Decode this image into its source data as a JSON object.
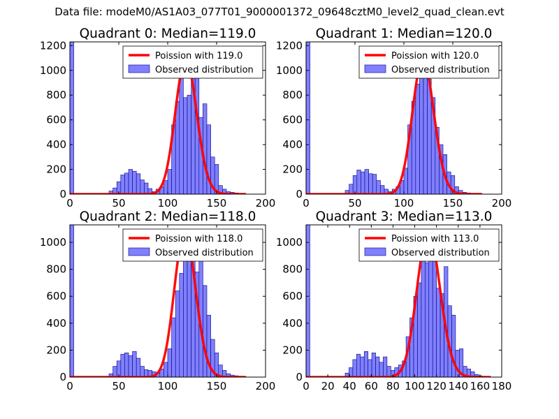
{
  "suptitle": "Data file: modeM0/AS1A03_077T01_9000001372_09648cztM0_level2_quad_clean.evt",
  "colors": {
    "fit_line": "#ff0000",
    "bar_fill": "#8080ff",
    "bar_edge": "#000080",
    "axes": "#000000",
    "legend_edge": "#000000"
  },
  "chart_data": [
    {
      "type": "bar",
      "title": "Quadrant 0: Median=119.0",
      "xlim": [
        0,
        200
      ],
      "ylim": [
        0,
        1230
      ],
      "xticks": [
        0,
        50,
        100,
        150,
        200
      ],
      "yticks": [
        0,
        200,
        400,
        600,
        800,
        1000,
        1200
      ],
      "legend_position": "top-right",
      "bin_width": 4,
      "bins": {
        "name": "Observed distribution",
        "x": [
          0,
          40,
          44,
          48,
          52,
          56,
          60,
          64,
          68,
          72,
          76,
          80,
          84,
          88,
          92,
          96,
          100,
          104,
          108,
          112,
          116,
          120,
          124,
          128,
          132,
          136,
          140,
          144,
          148,
          152,
          156,
          160,
          164,
          168,
          172,
          176
        ],
        "values": [
          1230,
          25,
          50,
          100,
          155,
          170,
          200,
          185,
          165,
          115,
          90,
          45,
          20,
          40,
          60,
          110,
          200,
          560,
          750,
          950,
          780,
          800,
          1020,
          980,
          620,
          730,
          560,
          300,
          240,
          70,
          40,
          20,
          15,
          10,
          5,
          2
        ]
      },
      "fit": {
        "name": "Poission with 119.0",
        "mean": 119.0,
        "peak": 1090,
        "x": [
          0,
          180
        ]
      }
    },
    {
      "type": "bar",
      "title": "Quadrant 1: Median=120.0",
      "xlim": [
        0,
        200
      ],
      "ylim": [
        0,
        1230
      ],
      "xticks": [
        0,
        50,
        100,
        150,
        200
      ],
      "yticks": [
        0,
        200,
        400,
        600,
        800,
        1000,
        1200
      ],
      "legend_position": "top-right",
      "bin_width": 4,
      "bins": {
        "name": "Observed distribution",
        "x": [
          0,
          40,
          44,
          48,
          52,
          56,
          60,
          64,
          68,
          72,
          76,
          80,
          84,
          88,
          92,
          96,
          100,
          104,
          108,
          112,
          116,
          120,
          124,
          128,
          132,
          136,
          140,
          144,
          148,
          152,
          156,
          160,
          164,
          168,
          172,
          176
        ],
        "values": [
          1230,
          30,
          80,
          150,
          195,
          180,
          200,
          165,
          160,
          110,
          70,
          40,
          20,
          40,
          60,
          110,
          210,
          560,
          750,
          890,
          990,
          1150,
          930,
          780,
          540,
          400,
          320,
          180,
          150,
          60,
          30,
          15,
          10,
          5,
          3,
          2
        ]
      },
      "fit": {
        "name": "Poission with 120.0",
        "mean": 120.0,
        "peak": 1090,
        "x": [
          0,
          180
        ]
      }
    },
    {
      "type": "bar",
      "title": "Quadrant 2: Median=118.0",
      "xlim": [
        0,
        200
      ],
      "ylim": [
        0,
        1130
      ],
      "xticks": [
        0,
        50,
        100,
        150,
        200
      ],
      "yticks": [
        0,
        200,
        400,
        600,
        800,
        1000
      ],
      "legend_position": "top-right",
      "bin_width": 4,
      "bins": {
        "name": "Observed distribution",
        "x": [
          0,
          40,
          44,
          48,
          52,
          56,
          60,
          64,
          68,
          72,
          76,
          80,
          84,
          88,
          92,
          96,
          100,
          104,
          108,
          112,
          116,
          120,
          124,
          128,
          132,
          136,
          140,
          144,
          148,
          152,
          156,
          160,
          164,
          168,
          172,
          176
        ],
        "values": [
          1130,
          25,
          80,
          120,
          170,
          180,
          160,
          190,
          140,
          80,
          55,
          50,
          40,
          30,
          60,
          110,
          210,
          440,
          640,
          770,
          940,
          1000,
          930,
          780,
          880,
          680,
          460,
          280,
          180,
          90,
          50,
          25,
          15,
          10,
          5,
          3
        ]
      },
      "fit": {
        "name": "Poission with 118.0",
        "mean": 118.0,
        "peak": 1080,
        "x": [
          0,
          180
        ]
      }
    },
    {
      "type": "bar",
      "title": "Quadrant 3: Median=113.0",
      "xlim": [
        0,
        180
      ],
      "ylim": [
        0,
        1130
      ],
      "xticks": [
        0,
        20,
        40,
        60,
        80,
        100,
        120,
        140,
        160,
        180
      ],
      "yticks": [
        0,
        200,
        400,
        600,
        800,
        1000
      ],
      "legend_position": "top-right",
      "bin_width": 3.5,
      "bins": {
        "name": "Observed distribution",
        "x": [
          0,
          36,
          39.5,
          43,
          46.5,
          50,
          53.5,
          57,
          60.5,
          64,
          67.5,
          71,
          74.5,
          78,
          81.5,
          85,
          88.5,
          92,
          95.5,
          99,
          102.5,
          106,
          109.5,
          113,
          116.5,
          120,
          123.5,
          127,
          130.5,
          134,
          137.5,
          141,
          144.5,
          148,
          151.5,
          155,
          158.5,
          162
        ],
        "values": [
          1130,
          30,
          70,
          130,
          170,
          150,
          190,
          130,
          180,
          150,
          110,
          150,
          80,
          50,
          70,
          90,
          120,
          300,
          440,
          600,
          700,
          950,
          850,
          990,
          1000,
          660,
          620,
          820,
          530,
          460,
          200,
          210,
          80,
          60,
          40,
          20,
          10,
          5
        ]
      },
      "fit": {
        "name": "Poission with 113.0",
        "mean": 113.0,
        "peak": 1080,
        "x": [
          0,
          170
        ]
      }
    }
  ]
}
